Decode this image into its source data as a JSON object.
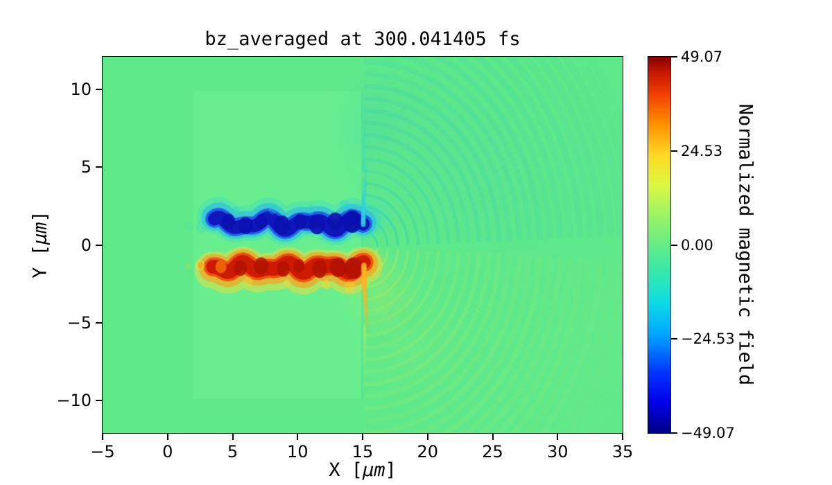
{
  "title": "bz_averaged at 300.041405 fs",
  "axes": {
    "xlabel": "X [μm]",
    "ylabel": "Y [μm]",
    "xlabel_parts": {
      "prefix": "X [",
      "math": "μm",
      "suffix": "]"
    },
    "ylabel_parts": {
      "prefix": "Y [",
      "math": "μm",
      "suffix": "]"
    },
    "x_ticks": [
      "−5",
      "0",
      "5",
      "10",
      "15",
      "20",
      "25",
      "30",
      "35"
    ],
    "x_tick_values": [
      -5,
      0,
      5,
      10,
      15,
      20,
      25,
      30,
      35
    ],
    "y_ticks": [
      "10",
      "5",
      "0",
      "−5",
      "−10"
    ],
    "y_tick_values": [
      10,
      5,
      0,
      -5,
      -10
    ]
  },
  "colorbar": {
    "label": "Normalized magnetic field",
    "ticks": [
      "49.07",
      "24.53",
      "0.00",
      "−24.53",
      "−49.07"
    ],
    "tick_values": [
      49.07,
      24.53,
      0,
      -24.53,
      -49.07
    ],
    "range": [
      -49.07,
      49.07
    ],
    "gradient": [
      [
        0,
        "#000082"
      ],
      [
        0.08,
        "#0000e8"
      ],
      [
        0.16,
        "#0034fe"
      ],
      [
        0.26,
        "#00a4ff"
      ],
      [
        0.34,
        "#0cd8e8"
      ],
      [
        0.42,
        "#32e8b0"
      ],
      [
        0.5,
        "#64ec84"
      ],
      [
        0.58,
        "#9cf464"
      ],
      [
        0.66,
        "#dcf840"
      ],
      [
        0.74,
        "#ffd824"
      ],
      [
        0.82,
        "#ff9000"
      ],
      [
        0.9,
        "#f04000"
      ],
      [
        0.96,
        "#c61600"
      ],
      [
        1,
        "#7f0000"
      ]
    ]
  },
  "chart_data": {
    "type": "heatmap",
    "title": "bz_averaged at 300.041405 fs",
    "xlabel": "X [μm]",
    "ylabel": "Y [μm]",
    "xlim": [
      -5,
      35
    ],
    "ylim": [
      -12.1,
      12.1
    ],
    "colormap": "jet",
    "colorbar_label": "Normalized magnetic field",
    "colorbar_range": [
      -49.07,
      49.07
    ],
    "time_fs": 300.041405,
    "quantity": "bz_averaged",
    "features": [
      {
        "name": "background",
        "description": "uniform field near 0 (green)"
      },
      {
        "name": "target-slab",
        "description": "slightly lighter rectangle x ≈ 2–15 μm, y ≈ −10–10 μm"
      },
      {
        "name": "negative-filament",
        "description": "wiggly negative-Bz filament (dark blue core, cyan fringe, peak ≈ −49) along y ≈ +1.4 μm, x ≈ 3.5–15 μm"
      },
      {
        "name": "positive-filament",
        "description": "wiggly positive-Bz filament (dark red core, orange/yellow fringe, peak ≈ +49) along y ≈ −1.4 μm, x ≈ 3.5–15 μm"
      },
      {
        "name": "rear-surface-streaks",
        "description": "at x ≈ 15 μm the blue channel bends up (cyan streak to y ≈ +5) and the red channel bends down (yellow-orange streak to y ≈ −5.5)"
      },
      {
        "name": "emitted-wavefronts",
        "description": "faint concentric semicircular ripples centered near (15, 0) expanding rightward to x = 35 μm; teal above axis, yellow-green below"
      }
    ],
    "render": {
      "colors": {
        "background": "#5fe98a",
        "slab": "#68ee8f"
      },
      "slab": {
        "x": [
          2,
          14.9
        ],
        "y": [
          -9.9,
          9.9
        ]
      },
      "washes": [
        {
          "x": 20,
          "y": 6.5,
          "r": 9,
          "color": "#2ec9c4",
          "alpha": 0.1
        },
        {
          "x": 27,
          "y": 2.5,
          "r": 10,
          "color": "#2ec9c4",
          "alpha": 0.06
        },
        {
          "x": 16.2,
          "y": 8.5,
          "r": 3.5,
          "color": "#2ec9c4",
          "alpha": 0.12
        },
        {
          "x": 15.3,
          "y": 7,
          "r": 2.5,
          "color": "#35d6c0",
          "alpha": 0.12
        },
        {
          "x": 15.9,
          "y": 1.8,
          "r": 1.7,
          "color": "#2fd2e2",
          "alpha": 0.32
        },
        {
          "x": 16.3,
          "y": -3.2,
          "r": 3.2,
          "color": "#d3ef46",
          "alpha": 0.24
        },
        {
          "x": 15.8,
          "y": -1.2,
          "r": 1.5,
          "color": "#ffd62e",
          "alpha": 0.32
        },
        {
          "x": 18.5,
          "y": -6.5,
          "r": 5,
          "color": "#bdef5a",
          "alpha": 0.1
        }
      ],
      "rings": {
        "center": [
          15.15,
          -0.15
        ],
        "clip_x": 14.9,
        "r0": 1.0,
        "dr": 0.78,
        "count": 27,
        "alpha0": 0.32,
        "fade": 26,
        "teal": "#2ec9c4",
        "yellow": "#b4ef62",
        "lw0": 2.2,
        "lwk": 0.45,
        "inner_boost": 1.6,
        "inner_n": 4
      },
      "boundary": {
        "x": 14.95,
        "y0": -9.9,
        "y1": 9.9,
        "color": "#35d6c0",
        "alpha": 0.22,
        "w": 0.06
      },
      "filaments": [
        {
          "x0": 3.6,
          "x1": 15.05,
          "yc": 1.35,
          "a1": 0.28,
          "f1": 1.8,
          "p1": 0.6,
          "a2": 0.16,
          "f2": 3.1,
          "p2": 2.2,
          "r": 0.42,
          "layers": [
            {
              "pad": 0.7,
              "dy": 0.18,
              "color": "#38dcc8",
              "alpha": 0.4
            },
            {
              "pad": 0.42,
              "dy": 0.1,
              "color": "#22b4ee",
              "alpha": 0.55
            },
            {
              "pad": 0.16,
              "dy": 0.02,
              "color": "#1c50ee",
              "alpha": 0.85
            },
            {
              "pad": 0,
              "dy": 0,
              "color": "#0f17bc",
              "alpha": 1
            }
          ],
          "blobs": [
            {
              "x": 4.7,
              "y": 1.5,
              "r": 0.5,
              "color": "#0b10ae",
              "alpha": 0.9
            },
            {
              "x": 6.0,
              "y": 1.25,
              "r": 0.55,
              "color": "#0b10ae",
              "alpha": 0.9
            },
            {
              "x": 7.2,
              "y": 1.5,
              "r": 0.48,
              "color": "#0b10ae",
              "alpha": 0.85
            },
            {
              "x": 8.8,
              "y": 1.3,
              "r": 0.6,
              "color": "#0b10ae",
              "alpha": 0.9
            },
            {
              "x": 10.2,
              "y": 1.5,
              "r": 0.5,
              "color": "#0b10ae",
              "alpha": 0.85
            },
            {
              "x": 11.5,
              "y": 1.3,
              "r": 0.62,
              "color": "#0b10ae",
              "alpha": 0.9
            },
            {
              "x": 12.9,
              "y": 1.5,
              "r": 0.6,
              "color": "#0b10ae",
              "alpha": 0.9
            },
            {
              "x": 14.2,
              "y": 1.5,
              "r": 0.72,
              "color": "#0b10ae",
              "alpha": 0.95
            },
            {
              "x": 5.3,
              "y": 2.15,
              "r": 0.3,
              "color": "#2ad0d8",
              "alpha": 0.35
            },
            {
              "x": 8.1,
              "y": 2.3,
              "r": 0.33,
              "color": "#2ad0d8",
              "alpha": 0.3
            },
            {
              "x": 11.0,
              "y": 2.25,
              "r": 0.3,
              "color": "#2ad0d8",
              "alpha": 0.3
            },
            {
              "x": 13.6,
              "y": 2.5,
              "r": 0.38,
              "color": "#2ad0d8",
              "alpha": 0.35
            }
          ]
        },
        {
          "x0": 3.5,
          "x1": 15.1,
          "yc": -1.45,
          "a1": 0.22,
          "f1": 2.0,
          "p1": 2.4,
          "a2": 0.14,
          "f2": 3.4,
          "p2": 0.9,
          "r": 0.45,
          "layers": [
            {
              "pad": 0.75,
              "dy": -0.2,
              "color": "#ffdc30",
              "alpha": 0.45
            },
            {
              "pad": 0.45,
              "dy": -0.08,
              "color": "#ff9a14",
              "alpha": 0.6
            },
            {
              "pad": 0.16,
              "dy": 0,
              "color": "#f2480a",
              "alpha": 0.9
            },
            {
              "pad": 0,
              "dy": 0,
              "color": "#cd1a02",
              "alpha": 1
            }
          ],
          "blobs": [
            {
              "x": 4.1,
              "y": -1.4,
              "r": 0.42,
              "color": "#f06a06",
              "alpha": 0.9
            },
            {
              "x": 5.6,
              "y": -1.5,
              "r": 0.5,
              "color": "#b31200",
              "alpha": 0.85
            },
            {
              "x": 7.2,
              "y": -1.35,
              "r": 0.55,
              "color": "#b31200",
              "alpha": 0.9
            },
            {
              "x": 8.9,
              "y": -1.55,
              "r": 0.5,
              "color": "#b31200",
              "alpha": 0.85
            },
            {
              "x": 10.1,
              "y": -1.35,
              "r": 0.45,
              "color": "#b31200",
              "alpha": 0.85
            },
            {
              "x": 11.7,
              "y": -1.55,
              "r": 0.58,
              "color": "#b31200",
              "alpha": 0.9
            },
            {
              "x": 13.1,
              "y": -1.45,
              "r": 0.62,
              "color": "#b31200",
              "alpha": 0.95
            },
            {
              "x": 14.3,
              "y": -1.5,
              "r": 0.7,
              "color": "#b31200",
              "alpha": 0.95
            },
            {
              "x": 6.2,
              "y": -2.35,
              "r": 0.32,
              "color": "#ffd62e",
              "alpha": 0.4
            },
            {
              "x": 9.2,
              "y": -2.5,
              "r": 0.3,
              "color": "#ffd62e",
              "alpha": 0.35
            },
            {
              "x": 12.2,
              "y": -2.55,
              "r": 0.33,
              "color": "#ffd62e",
              "alpha": 0.4
            },
            {
              "x": 14.0,
              "y": -2.7,
              "r": 0.4,
              "color": "#ffd62e",
              "alpha": 0.4
            }
          ]
        }
      ],
      "streaks": [
        {
          "x": 15.05,
          "y0": 1.3,
          "y1": 5.3,
          "curve": 0.3,
          "w": 0.18,
          "color": "#2fd2e2",
          "alpha": 0.8
        },
        {
          "x": 15.1,
          "y0": 4.8,
          "y1": 9.6,
          "curve": 0.15,
          "w": 0.1,
          "color": "#2fd2e2",
          "alpha": 0.35
        },
        {
          "x": 15.1,
          "y0": -1.3,
          "y1": -5.6,
          "curve": 0.35,
          "w": 0.2,
          "color": "#ffb320",
          "alpha": 0.85
        },
        {
          "x": 15.15,
          "y0": -5.2,
          "y1": -9.5,
          "curve": 0.1,
          "w": 0.1,
          "color": "#e8e84a",
          "alpha": 0.3
        }
      ],
      "blobs": [
        {
          "x": 2.55,
          "y": 1.15,
          "r": 0.4,
          "color": "#38dcc8",
          "alpha": 0.3
        },
        {
          "x": 2.5,
          "y": -1.3,
          "r": 0.36,
          "color": "#ffd62e",
          "alpha": 0.4
        },
        {
          "x": 2.5,
          "y": -1.3,
          "r": 0.2,
          "color": "#ff8c12",
          "alpha": 0.5
        },
        {
          "x": 1.6,
          "y": 1.2,
          "r": 0.28,
          "color": "#38dcc8",
          "alpha": 0.12
        },
        {
          "x": 1.55,
          "y": -1.35,
          "r": 0.26,
          "color": "#ffd62e",
          "alpha": 0.15
        }
      ]
    }
  }
}
